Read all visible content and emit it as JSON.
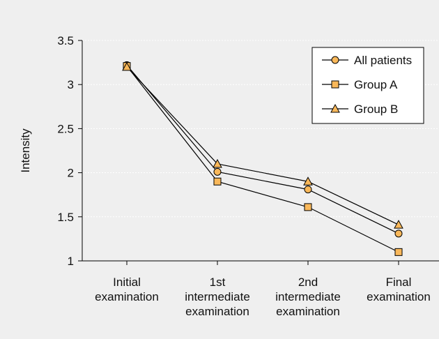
{
  "chart_data": {
    "type": "line",
    "title": "",
    "xlabel": "",
    "ylabel": "Intensity",
    "ylim": [
      1,
      3.5
    ],
    "yticks": [
      "1",
      "1.5",
      "2",
      "2.5",
      "3",
      "3.5"
    ],
    "categories": [
      [
        "Initial",
        "examination"
      ],
      [
        "1st",
        "intermediate",
        "examination"
      ],
      [
        "2nd",
        "intermediate",
        "examination"
      ],
      [
        "Final",
        "examination"
      ]
    ],
    "grid": true,
    "legend_position": "top-right",
    "marker_fill": "#f9b85a",
    "line_color": "#000000",
    "series": [
      {
        "name": "All patients",
        "marker": "circle",
        "values": [
          3.22,
          2.01,
          1.81,
          1.31
        ]
      },
      {
        "name": "Group A",
        "marker": "square",
        "values": [
          3.21,
          1.9,
          1.61,
          1.1
        ]
      },
      {
        "name": "Group B",
        "marker": "triangle",
        "values": [
          3.2,
          2.1,
          1.9,
          1.41
        ]
      }
    ]
  }
}
